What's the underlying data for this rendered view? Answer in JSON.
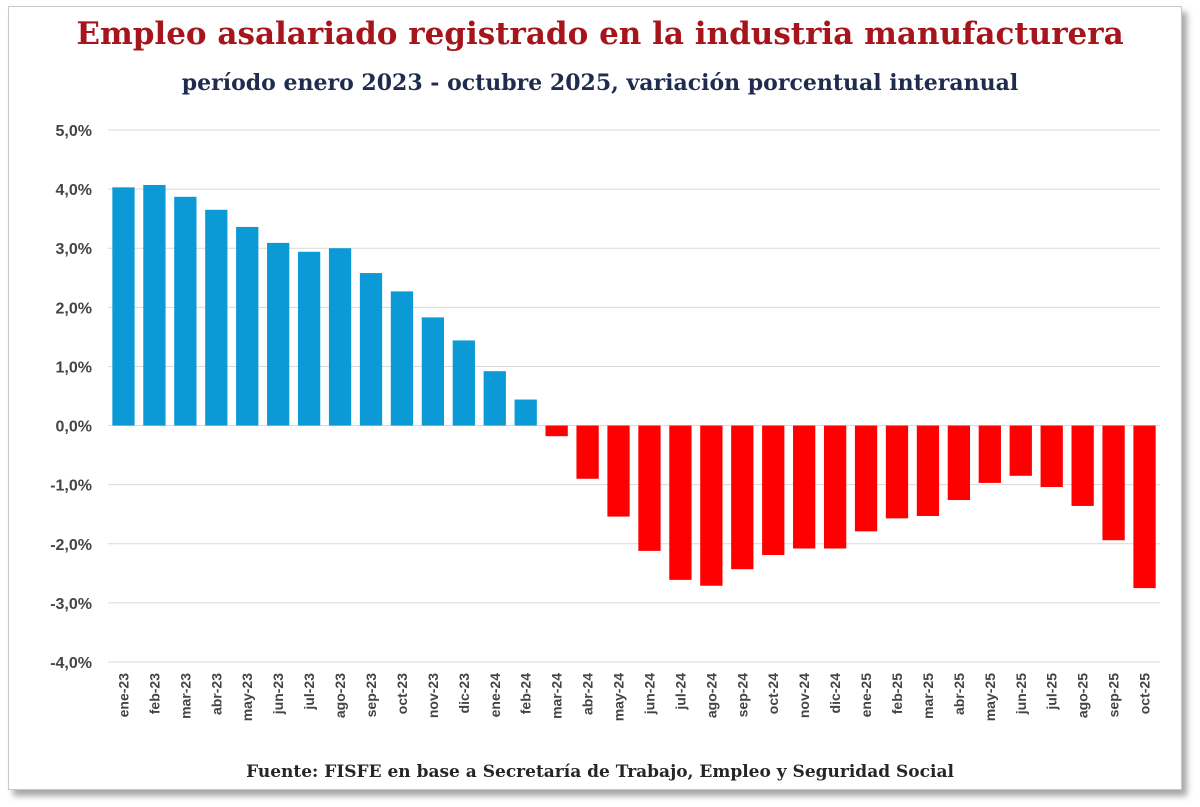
{
  "title": "Empleo asalariado registrado en la industria manufacturera",
  "subtitle": "período enero 2023 - octubre 2025, variación porcentual interanual",
  "source": "Fuente: FISFE en base a Secretaría de Trabajo, Empleo y Seguridad Social",
  "colors": {
    "positive": "#0b9ad6",
    "negative": "#fe0000",
    "title": "#a5151b",
    "subtitle": "#1f2b4f",
    "grid": "#d9d9d9"
  },
  "chart_data": {
    "type": "bar",
    "title": "Empleo asalariado registrado en la industria manufacturera",
    "subtitle": "período enero 2023 - octubre 2025, variación porcentual interanual",
    "xlabel": "",
    "ylabel": "",
    "ylim": [
      -4.0,
      5.0
    ],
    "y_ticks": [
      "5,0%",
      "4,0%",
      "3,0%",
      "2,0%",
      "1,0%",
      "0,0%",
      "-1,0%",
      "-2,0%",
      "-3,0%",
      "-4,0%"
    ],
    "grid": true,
    "legend": "none",
    "categories": [
      "ene-23",
      "feb-23",
      "mar-23",
      "abr-23",
      "may-23",
      "jun-23",
      "jul-23",
      "ago-23",
      "sep-23",
      "oct-23",
      "nov-23",
      "dic-23",
      "ene-24",
      "feb-24",
      "mar-24",
      "abr-24",
      "may-24",
      "jun-24",
      "jul-24",
      "ago-24",
      "sep-24",
      "oct-24",
      "nov-24",
      "dic-24",
      "ene-25",
      "feb-25",
      "mar-25",
      "abr-25",
      "may-25",
      "jun-25",
      "jul-25",
      "ago-25",
      "sep-25",
      "oct-25"
    ],
    "values": [
      4.03,
      4.07,
      3.87,
      3.65,
      3.36,
      3.09,
      2.94,
      3.0,
      2.58,
      2.27,
      1.83,
      1.44,
      0.92,
      0.44,
      -0.18,
      -0.9,
      -1.54,
      -2.12,
      -2.61,
      -2.71,
      -2.43,
      -2.19,
      -2.08,
      -2.08,
      -1.79,
      -1.57,
      -1.53,
      -1.26,
      -0.97,
      -0.85,
      -1.04,
      -1.36,
      -1.94,
      -2.75
    ]
  }
}
